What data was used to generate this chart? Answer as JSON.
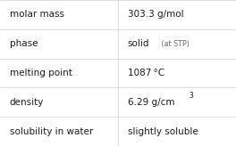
{
  "rows": [
    {
      "label": "molar mass",
      "value": "303.3 g/mol",
      "type": "normal"
    },
    {
      "label": "phase",
      "value": "solid",
      "suffix": " (at STP)",
      "type": "phase"
    },
    {
      "label": "melting point",
      "value": "1087 °C",
      "type": "normal"
    },
    {
      "label": "density",
      "value": "6.29 g/cm",
      "superscript": "3",
      "type": "density"
    },
    {
      "label": "solubility in water",
      "value": "slightly soluble",
      "type": "normal"
    }
  ],
  "col_split": 0.5,
  "background": "#ffffff",
  "line_color": "#d0d0d0",
  "label_fontsize": 7.5,
  "value_fontsize": 7.5,
  "label_color": "#1a1a1a",
  "value_color": "#1a1a1a",
  "suffix_fontsize": 5.8,
  "suffix_color": "#666666"
}
